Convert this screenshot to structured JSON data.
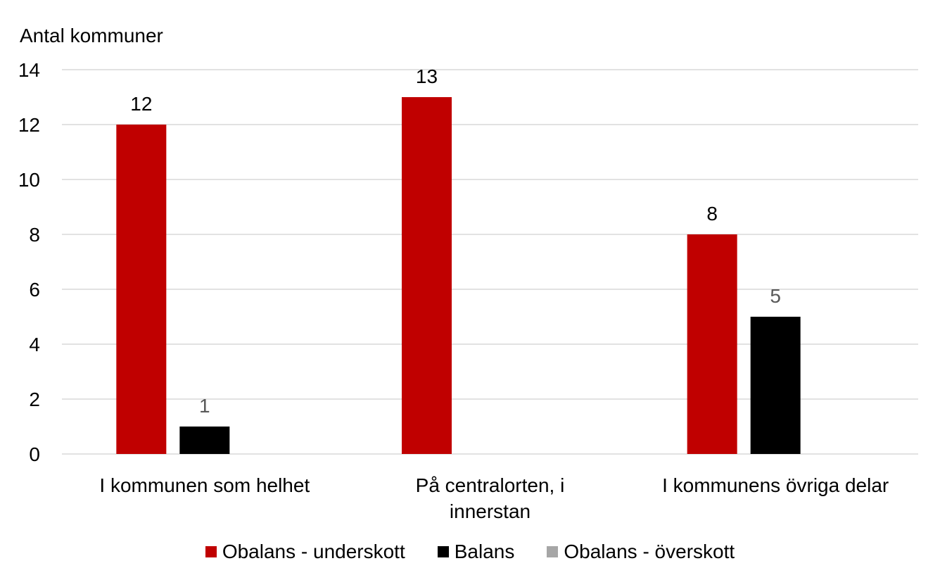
{
  "chart_data": {
    "type": "bar",
    "title": "",
    "ylabel": "Antal kommuner",
    "xlabel": "",
    "ylim": [
      0,
      14
    ],
    "yticks": [
      0,
      2,
      4,
      6,
      8,
      10,
      12,
      14
    ],
    "grid": true,
    "legend_position": "bottom",
    "categories": [
      [
        "I kommunen som helhet"
      ],
      [
        "På centralorten, i",
        "innerstan"
      ],
      [
        "I kommunens övriga delar"
      ]
    ],
    "series": [
      {
        "name": "Obalans - underskott",
        "color": "#c00000",
        "label_color": "#000000",
        "values": [
          12,
          13,
          8
        ]
      },
      {
        "name": "Balans",
        "color": "#000000",
        "label_color": "#595959",
        "values": [
          1,
          null,
          5
        ]
      },
      {
        "name": "Obalans - överskott",
        "color": "#a6a6a6",
        "label_color": "#595959",
        "values": [
          null,
          null,
          null
        ]
      }
    ]
  }
}
